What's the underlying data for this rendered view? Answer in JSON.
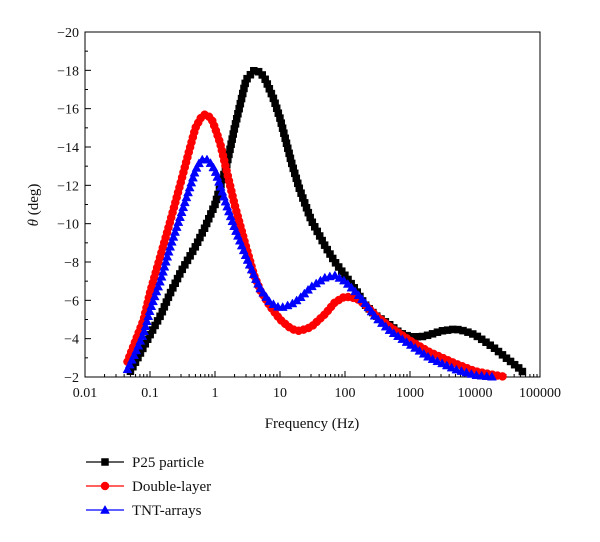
{
  "chart_data": {
    "type": "line",
    "xlabel": "Frequency (Hz)",
    "ylabel_symbol": "θ",
    "ylabel_unit": " (deg)",
    "xscale": "log",
    "xlim": [
      0.01,
      100000
    ],
    "ylim": [
      -2,
      -20
    ],
    "y_axis_inverted": true,
    "x_ticks": [
      {
        "value": 0.01,
        "label": "0.01"
      },
      {
        "value": 0.1,
        "label": "0.1"
      },
      {
        "value": 1,
        "label": "1"
      },
      {
        "value": 10,
        "label": "10"
      },
      {
        "value": 100,
        "label": "100"
      },
      {
        "value": 1000,
        "label": "1000"
      },
      {
        "value": 10000,
        "label": "10000"
      },
      {
        "value": 100000,
        "label": "100000"
      }
    ],
    "y_ticks": [
      {
        "value": -2,
        "label": "−2"
      },
      {
        "value": -4,
        "label": "−4"
      },
      {
        "value": -6,
        "label": "−6"
      },
      {
        "value": -8,
        "label": "−8"
      },
      {
        "value": -10,
        "label": "−10"
      },
      {
        "value": -12,
        "label": "−12"
      },
      {
        "value": -14,
        "label": "−14"
      },
      {
        "value": -16,
        "label": "−16"
      },
      {
        "value": -18,
        "label": "−18"
      },
      {
        "value": -20,
        "label": "−20"
      }
    ],
    "grid": false,
    "legend_position": "bottom-left, below plot",
    "series": [
      {
        "name": "P25 particle",
        "color": "#000000",
        "marker": "square",
        "points": [
          [
            0.05,
            -2.3
          ],
          [
            0.07,
            -3.2
          ],
          [
            0.1,
            -4.2
          ],
          [
            0.15,
            -5.3
          ],
          [
            0.2,
            -6.3
          ],
          [
            0.3,
            -7.5
          ],
          [
            0.5,
            -8.8
          ],
          [
            0.7,
            -9.8
          ],
          [
            1.0,
            -11.0
          ],
          [
            1.5,
            -13.0
          ],
          [
            2.0,
            -15.0
          ],
          [
            3.0,
            -17.5
          ],
          [
            4.0,
            -18.0
          ],
          [
            5.0,
            -17.9
          ],
          [
            6.0,
            -17.5
          ],
          [
            8.0,
            -16.5
          ],
          [
            10,
            -15.5
          ],
          [
            15,
            -13.2
          ],
          [
            20,
            -11.8
          ],
          [
            30,
            -10.2
          ],
          [
            50,
            -8.8
          ],
          [
            70,
            -8.0
          ],
          [
            100,
            -7.3
          ],
          [
            150,
            -6.5
          ],
          [
            200,
            -5.8
          ],
          [
            300,
            -5.2
          ],
          [
            500,
            -4.7
          ],
          [
            700,
            -4.3
          ],
          [
            1000,
            -4.1
          ],
          [
            1500,
            -4.1
          ],
          [
            2000,
            -4.2
          ],
          [
            3000,
            -4.4
          ],
          [
            5000,
            -4.5
          ],
          [
            7000,
            -4.4
          ],
          [
            10000,
            -4.2
          ],
          [
            15000,
            -3.8
          ],
          [
            20000,
            -3.5
          ],
          [
            30000,
            -3.0
          ],
          [
            50000,
            -2.4
          ],
          [
            60000,
            -2.1
          ]
        ]
      },
      {
        "name": "Double-layer",
        "color": "#ff0000",
        "marker": "circle",
        "points": [
          [
            0.045,
            -2.8
          ],
          [
            0.06,
            -3.9
          ],
          [
            0.08,
            -5.0
          ],
          [
            0.1,
            -6.4
          ],
          [
            0.15,
            -8.5
          ],
          [
            0.2,
            -10.0
          ],
          [
            0.3,
            -12.2
          ],
          [
            0.4,
            -13.8
          ],
          [
            0.5,
            -15.0
          ],
          [
            0.6,
            -15.5
          ],
          [
            0.7,
            -15.7
          ],
          [
            0.8,
            -15.6
          ],
          [
            0.9,
            -15.4
          ],
          [
            1.0,
            -15.0
          ],
          [
            1.2,
            -14.2
          ],
          [
            1.5,
            -12.8
          ],
          [
            2.0,
            -11.0
          ],
          [
            3.0,
            -8.8
          ],
          [
            4.0,
            -7.3
          ],
          [
            5.0,
            -6.5
          ],
          [
            7.0,
            -5.7
          ],
          [
            10,
            -5.0
          ],
          [
            15,
            -4.5
          ],
          [
            20,
            -4.4
          ],
          [
            30,
            -4.6
          ],
          [
            50,
            -5.3
          ],
          [
            70,
            -5.9
          ],
          [
            100,
            -6.2
          ],
          [
            150,
            -6.1
          ],
          [
            200,
            -5.8
          ],
          [
            300,
            -5.2
          ],
          [
            500,
            -4.6
          ],
          [
            1000,
            -3.9
          ],
          [
            2000,
            -3.3
          ],
          [
            5000,
            -2.7
          ],
          [
            10000,
            -2.3
          ],
          [
            20000,
            -2.1
          ],
          [
            30000,
            -2.0
          ]
        ]
      },
      {
        "name": "TNT-arrays",
        "color": "#0000ff",
        "marker": "triangle",
        "points": [
          [
            0.045,
            -2.4
          ],
          [
            0.06,
            -3.3
          ],
          [
            0.08,
            -4.3
          ],
          [
            0.1,
            -5.5
          ],
          [
            0.15,
            -7.2
          ],
          [
            0.2,
            -8.7
          ],
          [
            0.3,
            -10.5
          ],
          [
            0.4,
            -11.8
          ],
          [
            0.5,
            -12.8
          ],
          [
            0.6,
            -13.3
          ],
          [
            0.7,
            -13.4
          ],
          [
            0.8,
            -13.3
          ],
          [
            1.0,
            -12.8
          ],
          [
            1.2,
            -12.0
          ],
          [
            1.5,
            -11.0
          ],
          [
            2.0,
            -9.8
          ],
          [
            3.0,
            -8.3
          ],
          [
            4.0,
            -7.3
          ],
          [
            5.0,
            -6.6
          ],
          [
            7.0,
            -5.9
          ],
          [
            10,
            -5.6
          ],
          [
            15,
            -5.8
          ],
          [
            20,
            -6.1
          ],
          [
            30,
            -6.7
          ],
          [
            50,
            -7.2
          ],
          [
            70,
            -7.3
          ],
          [
            100,
            -7.0
          ],
          [
            150,
            -6.4
          ],
          [
            200,
            -5.9
          ],
          [
            300,
            -5.1
          ],
          [
            500,
            -4.4
          ],
          [
            1000,
            -3.7
          ],
          [
            2000,
            -3.0
          ],
          [
            5000,
            -2.4
          ],
          [
            10000,
            -2.1
          ],
          [
            20000,
            -2.0
          ]
        ]
      }
    ]
  }
}
